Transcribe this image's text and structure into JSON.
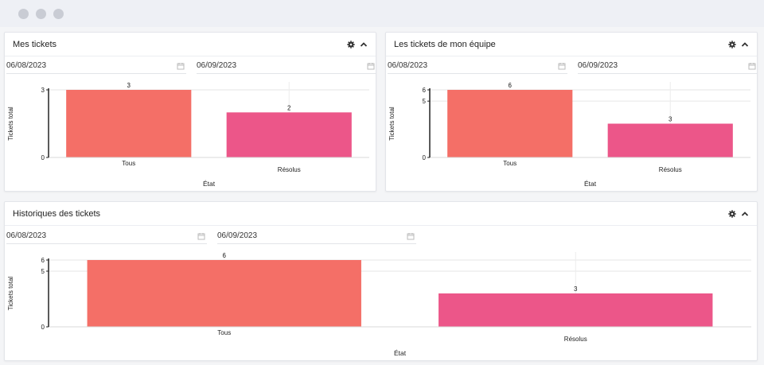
{
  "colors": {
    "tous": "#f46f67",
    "resolus": "#ec5689"
  },
  "panels": [
    {
      "title": "Mes tickets",
      "date_from": "06/08/2023",
      "date_to": "06/09/2023",
      "chart_data": {
        "type": "bar",
        "categories": [
          "Tous",
          "Résolus"
        ],
        "values": [
          3,
          2
        ],
        "xlabel": "État",
        "ylabel": "Tickets total",
        "yticks": [
          0,
          3
        ],
        "ylim": [
          0,
          3
        ]
      }
    },
    {
      "title": "Les tickets de mon équipe",
      "date_from": "06/08/2023",
      "date_to": "06/09/2023",
      "chart_data": {
        "type": "bar",
        "categories": [
          "Tous",
          "Résolus"
        ],
        "values": [
          6,
          3
        ],
        "xlabel": "État",
        "ylabel": "Tickets total",
        "yticks": [
          0,
          5,
          6
        ],
        "ylim": [
          0,
          6
        ]
      }
    },
    {
      "title": "Historiques des tickets",
      "date_from": "06/08/2023",
      "date_to": "06/09/2023",
      "chart_data": {
        "type": "bar",
        "categories": [
          "Tous",
          "Résolus"
        ],
        "values": [
          6,
          3
        ],
        "xlabel": "État",
        "ylabel": "Tickets total",
        "yticks": [
          0,
          5,
          6
        ],
        "ylim": [
          0,
          6
        ]
      }
    }
  ],
  "icons": {
    "settings": "gear-icon",
    "collapse": "chevron-up-icon",
    "calendar": "calendar-icon"
  }
}
